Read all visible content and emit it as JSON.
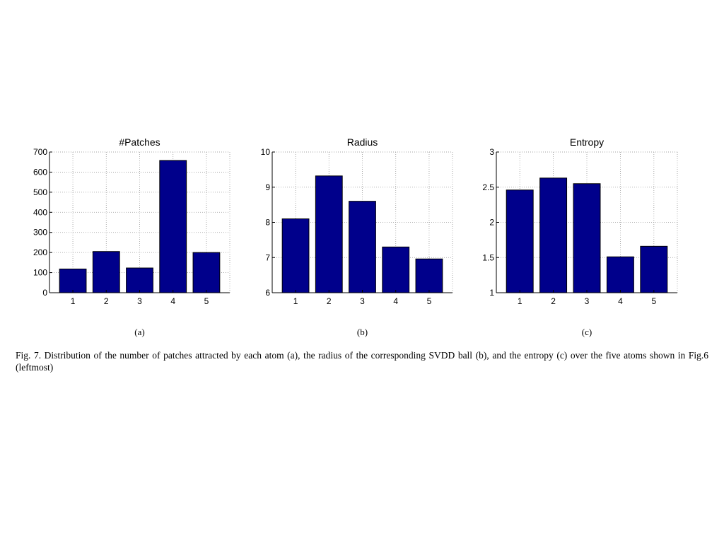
{
  "chart_data": [
    {
      "type": "bar",
      "title": "#Patches",
      "categories": [
        "1",
        "2",
        "3",
        "4",
        "5"
      ],
      "values": [
        118,
        205,
        123,
        658,
        200
      ],
      "ylim": [
        0,
        700
      ],
      "yticks": [
        0,
        100,
        200,
        300,
        400,
        500,
        600,
        700
      ],
      "ytick_labels": [
        "0",
        "100",
        "200",
        "300",
        "400",
        "500",
        "600",
        "700"
      ],
      "xlabel": "",
      "ylabel": "",
      "grid": true,
      "bar_color": "#00008b",
      "sublabel": "(a)"
    },
    {
      "type": "bar",
      "title": "Radius",
      "categories": [
        "1",
        "2",
        "3",
        "4",
        "5"
      ],
      "values": [
        8.1,
        9.32,
        8.6,
        7.3,
        6.96
      ],
      "ylim": [
        6,
        10
      ],
      "yticks": [
        6,
        7,
        8,
        9,
        10
      ],
      "ytick_labels": [
        "6",
        "7",
        "8",
        "9",
        "10"
      ],
      "xlabel": "",
      "ylabel": "",
      "grid": true,
      "bar_color": "#00008b",
      "sublabel": "(b)"
    },
    {
      "type": "bar",
      "title": "Entropy",
      "categories": [
        "1",
        "2",
        "3",
        "4",
        "5"
      ],
      "values": [
        2.46,
        2.63,
        2.55,
        1.51,
        1.66
      ],
      "ylim": [
        1,
        3
      ],
      "yticks": [
        1,
        1.5,
        2,
        2.5,
        3
      ],
      "ytick_labels": [
        "1",
        "1.5",
        "2",
        "2.5",
        "3"
      ],
      "xlabel": "",
      "ylabel": "",
      "grid": true,
      "bar_color": "#00008b",
      "sublabel": "(c)"
    }
  ],
  "caption": "Fig. 7.   Distribution of the number of patches attracted by each atom (a), the radius of the corresponding SVDD ball (b), and the entropy (c) over the five atoms shown in Fig.6 (leftmost)"
}
